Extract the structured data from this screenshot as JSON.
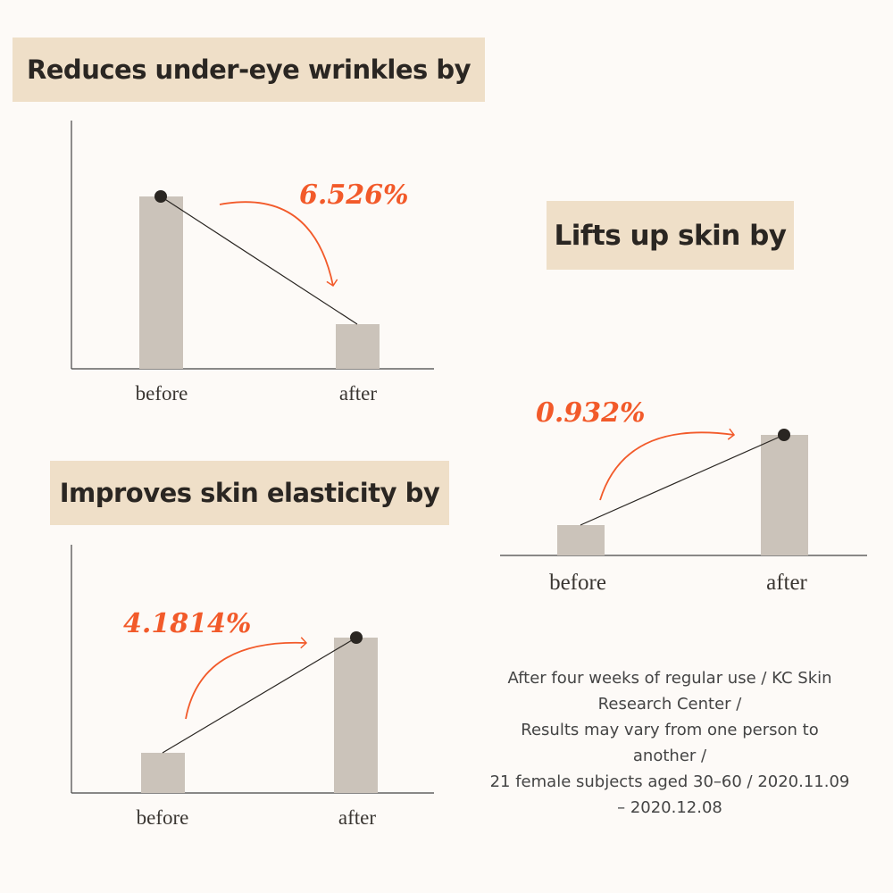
{
  "colors": {
    "background": "#fdfaf7",
    "title_box": "#efdfc8",
    "bar": "#cbc3ba",
    "accent": "#f25a2a",
    "line": "#2a2622"
  },
  "chart_data": [
    {
      "type": "bar",
      "title": "Reduces under-eye wrinkles by",
      "categories": [
        "before",
        "after"
      ],
      "change_label": "6.526%",
      "direction": "decrease",
      "annotation": "curved arrow from before to after"
    },
    {
      "type": "bar",
      "title": "Lifts up skin by",
      "categories": [
        "before",
        "after"
      ],
      "change_label": "0.932%",
      "direction": "increase",
      "annotation": "curved arrow from before to after"
    },
    {
      "type": "bar",
      "title": "Improves skin elasticity by",
      "categories": [
        "before",
        "after"
      ],
      "change_label": "4.1814%",
      "direction": "increase",
      "annotation": "curved arrow from before to after"
    }
  ],
  "footnote": {
    "lines": [
      "After four weeks of regular use / KC Skin",
      "Research Center /",
      "Results may vary from one person to",
      "another /",
      "21 female subjects aged 30–60 / 2020.11.09",
      "– 2020.12.08"
    ]
  }
}
